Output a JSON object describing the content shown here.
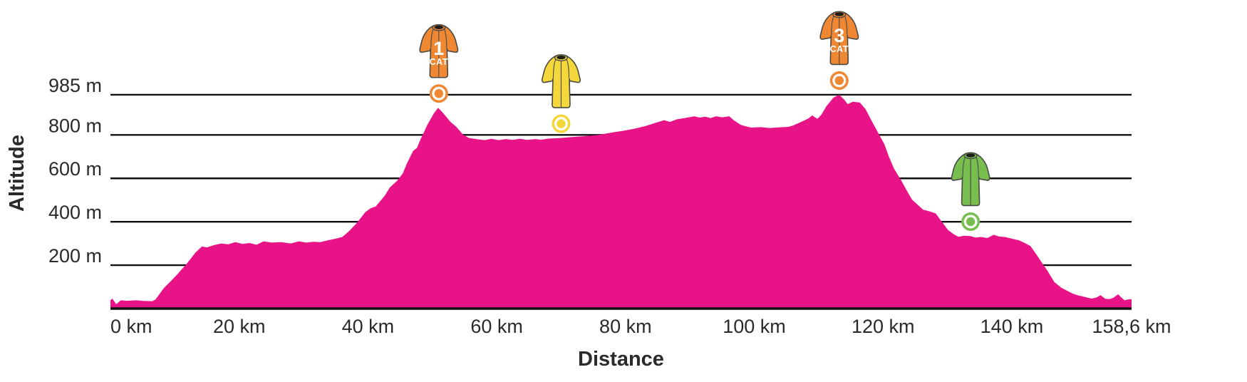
{
  "chart_data": {
    "type": "area",
    "xlabel": "Distance",
    "ylabel": "Altitude",
    "x_unit": "km",
    "y_unit": "m",
    "xlim": [
      0,
      158.6
    ],
    "ylim": [
      0,
      985
    ],
    "grid": true,
    "area_color": "#E81487",
    "axis_color": "#111111",
    "text_color": "#2B2A29",
    "outline_color": "#4A4A46",
    "x_ticks": [
      {
        "km": 0,
        "label": "0 km"
      },
      {
        "km": 20,
        "label": "20 km"
      },
      {
        "km": 40,
        "label": "40 km"
      },
      {
        "km": 60,
        "label": "60 km"
      },
      {
        "km": 80,
        "label": "80 km"
      },
      {
        "km": 100,
        "label": "100 km"
      },
      {
        "km": 120,
        "label": "120 km"
      },
      {
        "km": 140,
        "label": "140 km"
      },
      {
        "km": 158.6,
        "label": "158,6 km"
      }
    ],
    "y_gridlines": [
      {
        "m": 985,
        "label": "985 m"
      },
      {
        "m": 800,
        "label": "800 m"
      },
      {
        "m": 600,
        "label": "600 m"
      },
      {
        "m": 400,
        "label": "400 m"
      },
      {
        "m": 200,
        "label": "200 m"
      }
    ],
    "markers": [
      {
        "name": "cat1-climb",
        "type": "categorized-climb",
        "jersey": "orange",
        "cat_number": "1",
        "cat_label": "CAT",
        "km": 51,
        "altitude_m": 925,
        "color": "#EF8733"
      },
      {
        "name": "yellow-jersey-point",
        "type": "jersey",
        "jersey": "yellow",
        "cat_number": "",
        "cat_label": "",
        "km": 70,
        "altitude_m": 786,
        "color": "#F4D73B"
      },
      {
        "name": "cat3-climb",
        "type": "categorized-climb",
        "jersey": "orange",
        "cat_number": "3",
        "cat_label": "CAT",
        "km": 113.2,
        "altitude_m": 985,
        "color": "#EF8733"
      },
      {
        "name": "green-jersey-point",
        "type": "jersey",
        "jersey": "green",
        "cat_number": "",
        "cat_label": "",
        "km": 133.6,
        "altitude_m": 335,
        "color": "#77BE4E"
      }
    ],
    "profile": [
      [
        0,
        38
      ],
      [
        0.3,
        46
      ],
      [
        0.9,
        20
      ],
      [
        1.6,
        38
      ],
      [
        2.5,
        36
      ],
      [
        4,
        38
      ],
      [
        5.2,
        35
      ],
      [
        6.5,
        34
      ],
      [
        7,
        42
      ],
      [
        8.3,
        95
      ],
      [
        9.5,
        130
      ],
      [
        10.5,
        162
      ],
      [
        11.8,
        205
      ],
      [
        13.2,
        258
      ],
      [
        14.2,
        286
      ],
      [
        15,
        282
      ],
      [
        16,
        292
      ],
      [
        17.2,
        300
      ],
      [
        18.3,
        296
      ],
      [
        19.4,
        306
      ],
      [
        20.5,
        298
      ],
      [
        21.6,
        302
      ],
      [
        22.7,
        294
      ],
      [
        23.8,
        310
      ],
      [
        25,
        304
      ],
      [
        26.5,
        306
      ],
      [
        28,
        300
      ],
      [
        29.3,
        310
      ],
      [
        30.4,
        304
      ],
      [
        31.5,
        308
      ],
      [
        32.6,
        306
      ],
      [
        33.8,
        315
      ],
      [
        35,
        322
      ],
      [
        36,
        330
      ],
      [
        37,
        355
      ],
      [
        38.2,
        392
      ],
      [
        39.6,
        445
      ],
      [
        40.4,
        462
      ],
      [
        41.2,
        470
      ],
      [
        42.6,
        520
      ],
      [
        43.4,
        558
      ],
      [
        44.5,
        588
      ],
      [
        45.4,
        622
      ],
      [
        46,
        665
      ],
      [
        47,
        726
      ],
      [
        47.6,
        740
      ],
      [
        48.1,
        775
      ],
      [
        49.2,
        845
      ],
      [
        50.2,
        898
      ],
      [
        50.9,
        925
      ],
      [
        51.6,
        903
      ],
      [
        52.8,
        860
      ],
      [
        53.7,
        838
      ],
      [
        54.8,
        800
      ],
      [
        55.7,
        786
      ],
      [
        57,
        780
      ],
      [
        58.1,
        776
      ],
      [
        59.2,
        782
      ],
      [
        60.3,
        776
      ],
      [
        61.4,
        781
      ],
      [
        62.5,
        777
      ],
      [
        63.6,
        782
      ],
      [
        64.7,
        777
      ],
      [
        66,
        781
      ],
      [
        66.9,
        778
      ],
      [
        68,
        783
      ],
      [
        69.9,
        786
      ],
      [
        71.5,
        790
      ],
      [
        73.6,
        794
      ],
      [
        75.8,
        800
      ],
      [
        78,
        812
      ],
      [
        79.5,
        818
      ],
      [
        81.3,
        828
      ],
      [
        83,
        840
      ],
      [
        84.7,
        856
      ],
      [
        86,
        868
      ],
      [
        86.9,
        860
      ],
      [
        88,
        872
      ],
      [
        89.6,
        880
      ],
      [
        90.7,
        886
      ],
      [
        91.5,
        880
      ],
      [
        92.4,
        884
      ],
      [
        93.2,
        878
      ],
      [
        94.1,
        886
      ],
      [
        95,
        881
      ],
      [
        96.1,
        886
      ],
      [
        96.8,
        868
      ],
      [
        97.9,
        846
      ],
      [
        99,
        837
      ],
      [
        99.6,
        834
      ],
      [
        101,
        836
      ],
      [
        102.4,
        832
      ],
      [
        103.8,
        835
      ],
      [
        105.3,
        837
      ],
      [
        106,
        843
      ],
      [
        107.3,
        860
      ],
      [
        108.4,
        876
      ],
      [
        109,
        890
      ],
      [
        109.8,
        874
      ],
      [
        110.4,
        892
      ],
      [
        111.2,
        932
      ],
      [
        112.3,
        972
      ],
      [
        113.2,
        985
      ],
      [
        114,
        962
      ],
      [
        114.5,
        942
      ],
      [
        115.3,
        953
      ],
      [
        116.4,
        949
      ],
      [
        117.3,
        918
      ],
      [
        118.1,
        872
      ],
      [
        119.2,
        812
      ],
      [
        120.2,
        758
      ],
      [
        120.9,
        700
      ],
      [
        121.7,
        645
      ],
      [
        122.8,
        592
      ],
      [
        123.6,
        548
      ],
      [
        124.5,
        502
      ],
      [
        125.4,
        478
      ],
      [
        126.2,
        456
      ],
      [
        127.3,
        447
      ],
      [
        128.2,
        438
      ],
      [
        129,
        405
      ],
      [
        130.1,
        362
      ],
      [
        131,
        342
      ],
      [
        131.7,
        331
      ],
      [
        132.6,
        336
      ],
      [
        133.6,
        334
      ],
      [
        134.4,
        327
      ],
      [
        135.2,
        330
      ],
      [
        136.2,
        325
      ],
      [
        137.2,
        340
      ],
      [
        138,
        332
      ],
      [
        138.9,
        330
      ],
      [
        140,
        322
      ],
      [
        141.1,
        315
      ],
      [
        142.3,
        298
      ],
      [
        142.9,
        288
      ],
      [
        143.9,
        246
      ],
      [
        144.7,
        210
      ],
      [
        145.5,
        176
      ],
      [
        146.6,
        122
      ],
      [
        147.7,
        96
      ],
      [
        148.6,
        82
      ],
      [
        149.4,
        70
      ],
      [
        150.4,
        60
      ],
      [
        151,
        56
      ],
      [
        151.8,
        50
      ],
      [
        152.4,
        46
      ],
      [
        153.2,
        52
      ],
      [
        153.8,
        62
      ],
      [
        154.5,
        45
      ],
      [
        155.2,
        44
      ],
      [
        155.8,
        50
      ],
      [
        156.5,
        66
      ],
      [
        157,
        52
      ],
      [
        157.5,
        38
      ],
      [
        158,
        42
      ],
      [
        158.6,
        44
      ]
    ]
  }
}
